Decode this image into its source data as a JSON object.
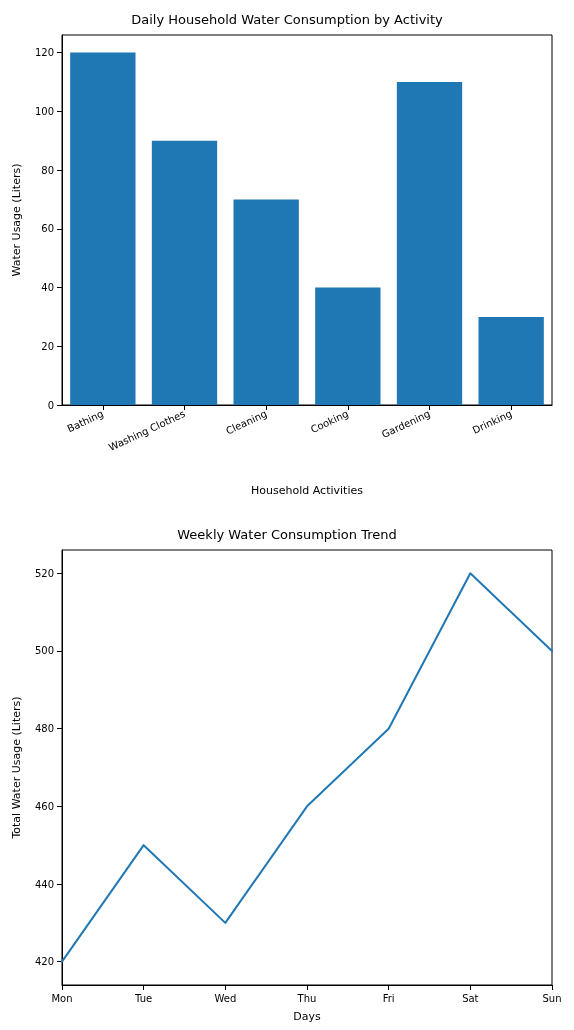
{
  "chart_data": [
    {
      "type": "bar",
      "title": "Daily Household Water Consumption by Activity",
      "xlabel": "Household Activities",
      "ylabel": "Water Usage (Liters)",
      "categories": [
        "Bathing",
        "Washing Clothes",
        "Cleaning",
        "Cooking",
        "Gardening",
        "Drinking"
      ],
      "values": [
        120,
        90,
        70,
        40,
        110,
        30
      ],
      "color": "#1f77b4",
      "ylim": [
        0,
        126
      ],
      "yticks": [
        0,
        20,
        40,
        60,
        80,
        100,
        120
      ]
    },
    {
      "type": "line",
      "title": "Weekly Water Consumption Trend",
      "xlabel": "Days",
      "ylabel": "Total Water Usage (Liters)",
      "categories": [
        "Mon",
        "Tue",
        "Wed",
        "Thu",
        "Fri",
        "Sat",
        "Sun"
      ],
      "values": [
        420,
        450,
        430,
        460,
        480,
        520,
        500
      ],
      "color": "#1f77b4",
      "ylim": [
        414,
        526
      ],
      "yticks": [
        420,
        440,
        460,
        480,
        500,
        520
      ]
    }
  ]
}
